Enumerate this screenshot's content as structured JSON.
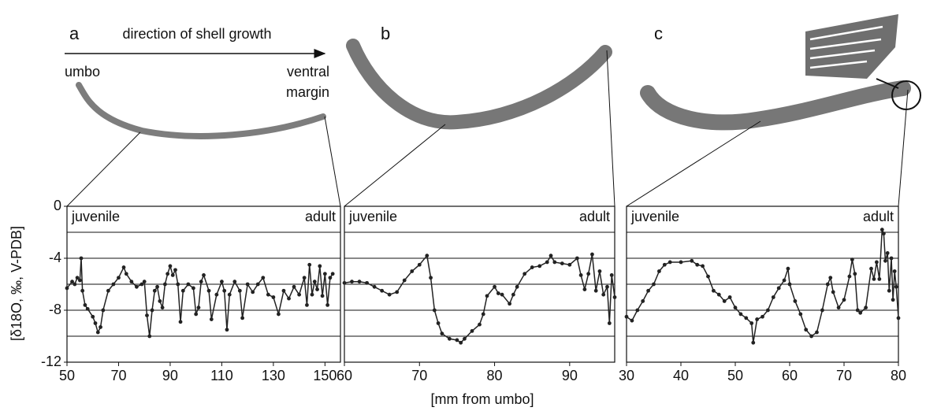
{
  "figure": {
    "title": "direction of shell growth",
    "umbo": "umbo",
    "ventral": "ventral",
    "margin": "margin",
    "xlabel": "[mm from umbo]",
    "y_axis": {
      "label": "[δ18O, ‰, V-PDB]",
      "ylim": [
        -12,
        0
      ],
      "yticks": [
        0,
        -4,
        -8,
        -12
      ],
      "grid": [
        -2,
        -4,
        -6,
        -8,
        -10
      ]
    }
  },
  "chart_data": [
    {
      "type": "line",
      "panel": "a",
      "juvenile": "juvenile",
      "adult": "adult",
      "xlim": [
        50,
        156
      ],
      "xticks": [
        50,
        70,
        90,
        110,
        130,
        150
      ],
      "x": [
        50,
        52,
        53,
        54,
        55,
        55.5,
        56,
        57,
        58,
        60,
        61,
        62,
        63,
        64,
        66,
        68,
        70,
        72,
        73,
        75,
        77,
        79,
        80,
        81,
        82,
        83,
        84,
        85,
        86,
        87,
        88,
        89,
        90,
        91,
        92,
        93,
        94,
        95,
        97,
        99,
        100,
        101,
        102,
        103,
        105,
        106,
        108,
        110,
        111,
        112,
        113,
        115,
        117,
        118,
        120,
        122,
        124,
        126,
        128,
        130,
        132,
        134,
        136,
        138,
        140,
        142,
        143,
        144,
        145,
        146,
        147,
        148,
        149,
        150,
        151,
        152,
        153
      ],
      "series": [
        {
          "color": "#222222",
          "values": [
            -6.3,
            -5.8,
            -6.0,
            -5.5,
            -5.7,
            -4.0,
            -6.5,
            -7.6,
            -7.9,
            -8.5,
            -9.0,
            -9.7,
            -9.3,
            -8.0,
            -6.5,
            -6.0,
            -5.5,
            -4.7,
            -5.2,
            -5.8,
            -6.2,
            -6.0,
            -5.8,
            -8.4,
            -10.0,
            -8.0,
            -6.5,
            -6.2,
            -7.3,
            -7.8,
            -6.0,
            -5.2,
            -4.6,
            -5.3,
            -4.9,
            -6.0,
            -8.9,
            -6.5,
            -6.0,
            -6.3,
            -8.3,
            -7.8,
            -5.8,
            -5.3,
            -6.5,
            -8.7,
            -6.8,
            -5.8,
            -6.5,
            -9.5,
            -6.8,
            -5.8,
            -6.5,
            -8.6,
            -6.0,
            -6.6,
            -6.0,
            -5.5,
            -6.8,
            -7.0,
            -8.3,
            -6.5,
            -7.1,
            -6.2,
            -6.8,
            -5.5,
            -7.6,
            -4.5,
            -6.8,
            -5.8,
            -6.4,
            -4.6,
            -6.9,
            -5.2,
            -7.6,
            -5.5,
            -5.2
          ]
        }
      ]
    },
    {
      "type": "line",
      "panel": "b",
      "juvenile": "juvenile",
      "adult": "adult",
      "xlim": [
        60,
        96
      ],
      "xticks": [
        60,
        70,
        80,
        90
      ],
      "x": [
        60,
        61,
        62,
        63,
        64,
        65,
        66,
        67,
        68,
        69,
        70,
        71,
        71.5,
        72,
        72.5,
        73,
        74,
        75,
        75.5,
        76,
        77,
        78,
        78.5,
        79,
        80,
        80.5,
        81,
        82,
        82.5,
        83,
        84,
        85,
        86,
        87,
        87.5,
        88,
        89,
        90,
        91,
        91.5,
        92,
        92.5,
        93,
        93.5,
        94,
        94.5,
        95,
        95.3,
        95.6,
        96
      ],
      "series": [
        {
          "color": "#222222",
          "values": [
            -5.9,
            -5.8,
            -5.8,
            -5.9,
            -6.2,
            -6.5,
            -6.8,
            -6.6,
            -5.7,
            -5.0,
            -4.5,
            -3.8,
            -5.5,
            -8.0,
            -9.0,
            -9.8,
            -10.2,
            -10.3,
            -10.5,
            -10.2,
            -9.6,
            -9.1,
            -8.3,
            -6.9,
            -6.2,
            -6.7,
            -6.8,
            -7.5,
            -6.8,
            -6.2,
            -5.2,
            -4.7,
            -4.6,
            -4.3,
            -3.8,
            -4.3,
            -4.4,
            -4.5,
            -4.0,
            -5.3,
            -6.4,
            -5.2,
            -3.7,
            -6.5,
            -5.0,
            -6.8,
            -6.2,
            -9.0,
            -5.3,
            -7.0
          ]
        }
      ]
    },
    {
      "type": "line",
      "panel": "c",
      "juvenile": "juvenile",
      "adult": "adult",
      "xlim": [
        30,
        80
      ],
      "xticks": [
        30,
        40,
        50,
        60,
        70,
        80
      ],
      "x": [
        30,
        31,
        32,
        33,
        34,
        35,
        36,
        37,
        38,
        40,
        42,
        43,
        44,
        45,
        46,
        47,
        48,
        49,
        50,
        51,
        52,
        53,
        53.3,
        54,
        55,
        56,
        57,
        58,
        59,
        59.7,
        60,
        61,
        62,
        63,
        64,
        65,
        66,
        67,
        67.5,
        68,
        69,
        70,
        71,
        71.5,
        72,
        72.5,
        73,
        74,
        75,
        75.5,
        76,
        76.5,
        77,
        77.3,
        77.6,
        78,
        78.3,
        78.7,
        79,
        79.3,
        79.6,
        80
      ],
      "series": [
        {
          "color": "#222222",
          "values": [
            -8.5,
            -8.8,
            -8.0,
            -7.3,
            -6.5,
            -6.0,
            -5.0,
            -4.5,
            -4.3,
            -4.3,
            -4.2,
            -4.5,
            -4.6,
            -5.4,
            -6.5,
            -6.8,
            -7.3,
            -7.0,
            -7.8,
            -8.3,
            -8.6,
            -9.0,
            -10.5,
            -8.7,
            -8.5,
            -8.0,
            -7.0,
            -6.3,
            -5.7,
            -4.8,
            -6.0,
            -7.3,
            -8.3,
            -9.5,
            -10.0,
            -9.7,
            -8.0,
            -6.0,
            -5.5,
            -6.6,
            -7.8,
            -7.2,
            -5.4,
            -4.1,
            -5.2,
            -8.0,
            -8.2,
            -7.8,
            -4.8,
            -5.6,
            -4.3,
            -5.6,
            -1.8,
            -2.1,
            -4.2,
            -3.6,
            -6.5,
            -4.0,
            -7.2,
            -5.0,
            -6.2,
            -8.6
          ]
        }
      ]
    }
  ]
}
